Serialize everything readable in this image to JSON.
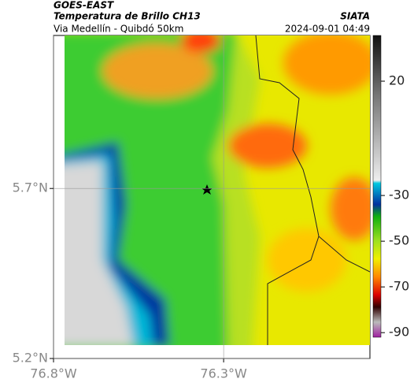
{
  "header": {
    "source": "GOES-EAST",
    "title": "Temperatura de Brillo CH13",
    "org": "SIATA",
    "route": "Via Medellín - Quibdó 50km",
    "timestamp": "2024-09-01 04:49"
  },
  "map": {
    "xlim": [
      -76.8,
      -75.87
    ],
    "ylim": [
      5.2,
      6.15
    ],
    "xticks": [
      {
        "value": -76.8,
        "label": "76.8°W"
      },
      {
        "value": -76.3,
        "label": "76.3°W"
      }
    ],
    "yticks": [
      {
        "value": 5.2,
        "label": "5.2°N"
      },
      {
        "value": 5.7,
        "label": "5.7°N"
      }
    ]
  },
  "colorbar": {
    "lim": [
      40,
      -92
    ],
    "ticks": [
      20,
      -30,
      -50,
      -70,
      -90
    ]
  }
}
